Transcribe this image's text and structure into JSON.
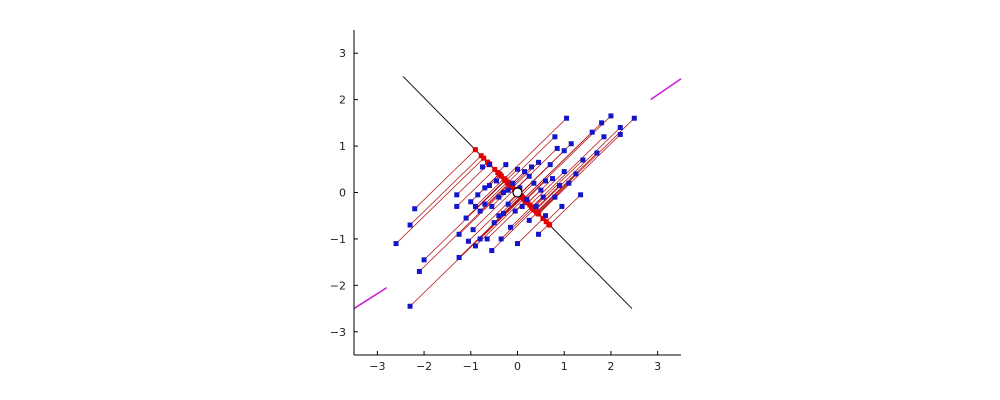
{
  "chart_data": {
    "type": "scatter",
    "title": "",
    "xlabel": "",
    "ylabel": "",
    "xlim": [
      -3.5,
      3.5
    ],
    "ylim": [
      -3.5,
      3.5
    ],
    "x_ticks": [
      -3,
      -2,
      -1,
      0,
      1,
      2,
      3
    ],
    "y_ticks": [
      -3,
      -2,
      -1,
      0,
      1,
      2,
      3
    ],
    "x_tick_labels": [
      "−3",
      "−2",
      "−1",
      "0",
      "1",
      "2",
      "3"
    ],
    "y_tick_labels": [
      "−3",
      "−2",
      "−1",
      "0",
      "1",
      "2",
      "3"
    ],
    "grid": false,
    "colors": {
      "points": "#1414c8",
      "projection_lines": "#b00000",
      "projected_points": "#e00000",
      "second_axis": "#111111",
      "principal_axis": "#d020d0",
      "center": "#ffffff"
    },
    "center": [
      0,
      0
    ],
    "principal_axis_segments": [
      [
        [
          -3.5,
          -2.5
        ],
        [
          -2.8,
          -2.05
        ]
      ],
      [
        [
          2.85,
          2.0
        ],
        [
          3.5,
          2.45
        ]
      ]
    ],
    "second_axis": [
      [
        -2.45,
        2.5
      ],
      [
        2.45,
        -2.5
      ]
    ],
    "series": [
      {
        "values": [
          [
            -2.6,
            -1.1
          ],
          [
            -2.2,
            -0.35
          ],
          [
            -2.3,
            -0.7
          ],
          [
            -2.3,
            -2.45
          ],
          [
            -2.1,
            -1.7
          ],
          [
            -2.0,
            -1.45
          ],
          [
            -1.3,
            -0.05
          ],
          [
            -1.3,
            -0.3
          ],
          [
            -1.25,
            -0.9
          ],
          [
            -1.25,
            -1.4
          ],
          [
            -1.1,
            -0.55
          ],
          [
            -1.05,
            -1.05
          ],
          [
            -1.0,
            -0.2
          ],
          [
            -0.95,
            -0.8
          ],
          [
            -0.9,
            -1.15
          ],
          [
            -0.9,
            -0.3
          ],
          [
            -0.85,
            -0.05
          ],
          [
            -0.8,
            -0.4
          ],
          [
            -0.8,
            -1.0
          ],
          [
            -0.7,
            0.1
          ],
          [
            -0.7,
            -0.25
          ],
          [
            -0.65,
            -1.0
          ],
          [
            -0.6,
            0.6
          ],
          [
            -0.6,
            0.15
          ],
          [
            -0.55,
            -0.3
          ],
          [
            -0.55,
            -1.25
          ],
          [
            -0.5,
            -0.65
          ],
          [
            -0.45,
            0.25
          ],
          [
            -0.4,
            -0.1
          ],
          [
            -0.4,
            -0.5
          ],
          [
            -0.35,
            -1.0
          ],
          [
            -0.3,
            0.0
          ],
          [
            -0.3,
            -0.45
          ],
          [
            -0.25,
            0.6
          ],
          [
            -0.2,
            -0.25
          ],
          [
            -0.15,
            -0.75
          ],
          [
            -0.1,
            0.2
          ],
          [
            -0.05,
            -0.4
          ],
          [
            0.0,
            0.5
          ],
          [
            0.0,
            -1.1
          ],
          [
            0.05,
            0.1
          ],
          [
            0.1,
            -0.3
          ],
          [
            0.15,
            0.45
          ],
          [
            0.2,
            -0.15
          ],
          [
            0.25,
            -0.6
          ],
          [
            0.3,
            0.55
          ],
          [
            0.35,
            0.2
          ],
          [
            0.4,
            -0.3
          ],
          [
            0.45,
            0.65
          ],
          [
            0.45,
            -0.9
          ],
          [
            0.5,
            0.05
          ],
          [
            0.6,
            0.25
          ],
          [
            0.6,
            -0.5
          ],
          [
            0.7,
            0.6
          ],
          [
            0.75,
            0.3
          ],
          [
            0.8,
            1.2
          ],
          [
            0.8,
            -0.1
          ],
          [
            0.85,
            0.95
          ],
          [
            0.9,
            0.15
          ],
          [
            0.95,
            -0.3
          ],
          [
            1.0,
            0.9
          ],
          [
            1.0,
            0.45
          ],
          [
            1.05,
            1.6
          ],
          [
            1.1,
            0.2
          ],
          [
            1.15,
            1.05
          ],
          [
            1.25,
            0.4
          ],
          [
            1.35,
            -0.05
          ],
          [
            1.4,
            0.7
          ],
          [
            1.6,
            1.3
          ],
          [
            1.7,
            0.85
          ],
          [
            1.8,
            1.5
          ],
          [
            1.85,
            1.2
          ],
          [
            2.0,
            1.65
          ],
          [
            2.2,
            1.25
          ],
          [
            2.2,
            1.4
          ],
          [
            2.5,
            1.6
          ],
          [
            -0.75,
            0.55
          ],
          [
            -0.2,
            0.05
          ],
          [
            0.25,
            0.35
          ],
          [
            0.55,
            -0.1
          ]
        ]
      }
    ]
  }
}
